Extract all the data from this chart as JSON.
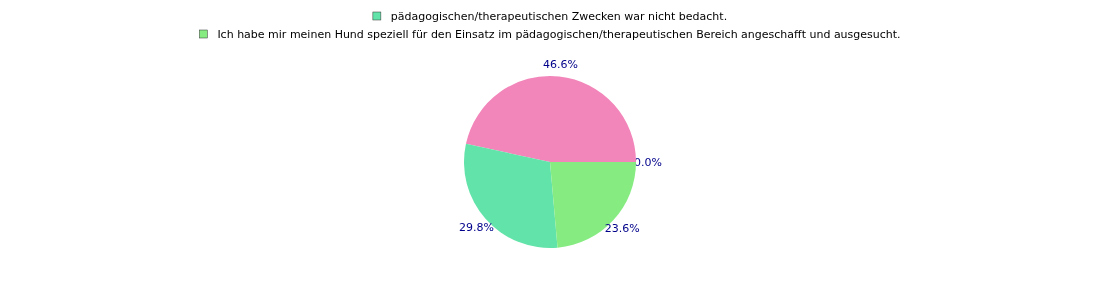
{
  "chart_data": {
    "type": "pie",
    "categories": [
      null,
      null,
      "pädagogischen/therapeutischen Zwecken war nicht bedacht.",
      "Ich habe mir meinen Hund speziell für den Einsatz im pädagogischen/therapeutischen Bereich angeschafft und ausgesucht."
    ],
    "values": [
      0.0,
      46.6,
      29.8,
      23.6
    ],
    "colors": [
      "#8ab4f0",
      "#f285b9",
      "#62e3a9",
      "#86ec82"
    ],
    "value_labels": [
      "0.0%",
      "46.6%",
      "29.8%",
      "23.6%"
    ],
    "legend": "top"
  }
}
